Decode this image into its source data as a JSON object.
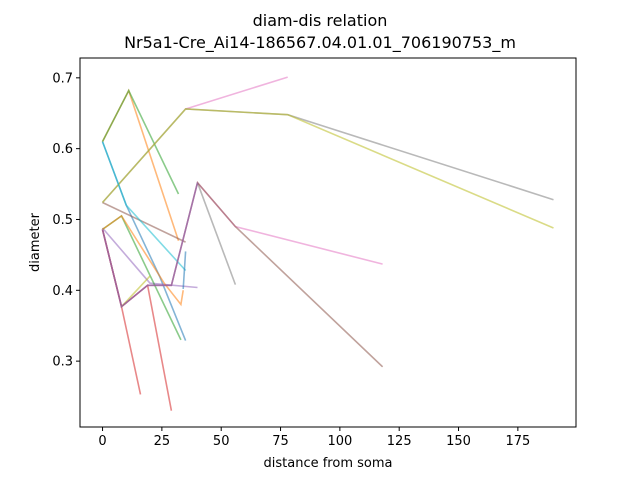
{
  "chart_data": {
    "type": "line",
    "title": "diam-dis relation",
    "subtitle": "Nr5a1-Cre_Ai14-186567.04.01.01_706190753_m",
    "xlabel": "distance from soma",
    "ylabel": "diameter",
    "xlim": [
      -9.5,
      199.5
    ],
    "ylim": [
      0.207,
      0.728
    ],
    "xticks": [
      0,
      25,
      50,
      75,
      100,
      125,
      150,
      175
    ],
    "yticks": [
      0.3,
      0.4,
      0.5,
      0.6,
      0.7
    ],
    "xtick_labels": [
      "0",
      "25",
      "50",
      "75",
      "100",
      "125",
      "150",
      "175"
    ],
    "ytick_labels": [
      "0.3",
      "0.4",
      "0.5",
      "0.6",
      "0.7"
    ],
    "grid": false,
    "legend": "none",
    "series": [
      {
        "color": "#1f77b4",
        "points": [
          [
            0,
            0.61
          ],
          [
            10,
            0.52
          ],
          [
            24,
            0.42
          ],
          [
            35,
            0.329
          ]
        ]
      },
      {
        "color": "#ff7f0e",
        "points": [
          [
            0,
            0.61
          ],
          [
            11,
            0.682
          ],
          [
            32,
            0.47
          ]
        ]
      },
      {
        "color": "#2ca02c",
        "points": [
          [
            0,
            0.61
          ],
          [
            11,
            0.682
          ],
          [
            32,
            0.536
          ]
        ]
      },
      {
        "color": "#d62728",
        "points": [
          [
            0,
            0.486
          ],
          [
            8,
            0.377
          ],
          [
            19,
            0.407
          ],
          [
            29,
            0.23
          ]
        ]
      },
      {
        "color": "#d62728",
        "points": [
          [
            0,
            0.486
          ],
          [
            8,
            0.377
          ],
          [
            16,
            0.253
          ]
        ]
      },
      {
        "color": "#9467bd",
        "points": [
          [
            0,
            0.488
          ],
          [
            20,
            0.41
          ],
          [
            40,
            0.404
          ]
        ]
      },
      {
        "color": "#8c564b",
        "points": [
          [
            0,
            0.524
          ],
          [
            35,
            0.468
          ]
        ]
      },
      {
        "color": "#e377c2",
        "points": [
          [
            0,
            0.486
          ],
          [
            8,
            0.377
          ],
          [
            19,
            0.407
          ],
          [
            29,
            0.407
          ],
          [
            40,
            0.552
          ],
          [
            56,
            0.49
          ],
          [
            118,
            0.437
          ]
        ]
      },
      {
        "color": "#e377c2",
        "points": [
          [
            35,
            0.656
          ],
          [
            78,
            0.701
          ]
        ]
      },
      {
        "color": "#7f7f7f",
        "points": [
          [
            0,
            0.524
          ],
          [
            35,
            0.656
          ],
          [
            78,
            0.648
          ],
          [
            190,
            0.528
          ]
        ]
      },
      {
        "color": "#7f7f7f",
        "points": [
          [
            40,
            0.552
          ],
          [
            56,
            0.408
          ]
        ]
      },
      {
        "color": "#bcbd22",
        "points": [
          [
            0,
            0.524
          ],
          [
            35,
            0.656
          ],
          [
            78,
            0.648
          ],
          [
            190,
            0.488
          ]
        ]
      },
      {
        "color": "#17becf",
        "points": [
          [
            0,
            0.61
          ],
          [
            10,
            0.52
          ],
          [
            35,
            0.428
          ]
        ]
      },
      {
        "color": "#1f77b4",
        "points": [
          [
            34,
            0.402
          ],
          [
            35,
            0.455
          ]
        ]
      },
      {
        "color": "#2ca02c",
        "points": [
          [
            0,
            0.486
          ],
          [
            8,
            0.505
          ],
          [
            33,
            0.33
          ]
        ]
      },
      {
        "color": "#ff7f0e",
        "points": [
          [
            0,
            0.486
          ],
          [
            8,
            0.505
          ],
          [
            26,
            0.41
          ],
          [
            33,
            0.38
          ],
          [
            34,
            0.4
          ]
        ]
      },
      {
        "color": "#bcbd22",
        "points": [
          [
            8,
            0.377
          ],
          [
            20,
            0.42
          ]
        ]
      },
      {
        "color": "#8c564b",
        "points": [
          [
            0,
            0.486
          ],
          [
            8,
            0.377
          ],
          [
            19,
            0.407
          ],
          [
            29,
            0.407
          ],
          [
            40,
            0.552
          ],
          [
            56,
            0.49
          ],
          [
            118,
            0.292
          ]
        ]
      },
      {
        "color": "#9467bd",
        "points": [
          [
            0,
            0.486
          ],
          [
            8,
            0.377
          ],
          [
            19,
            0.407
          ],
          [
            29,
            0.407
          ],
          [
            40,
            0.552
          ]
        ]
      }
    ]
  }
}
